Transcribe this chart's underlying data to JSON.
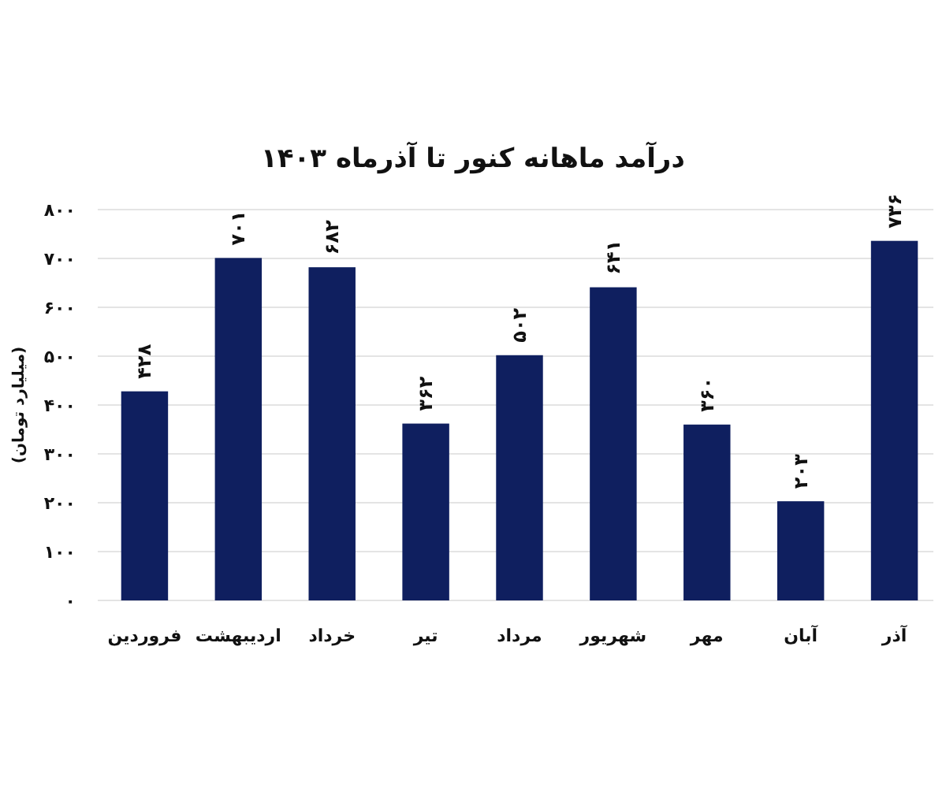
{
  "chart_data": {
    "type": "bar",
    "title": "درآمد ماهانه کنور تا آذرماه ۱۴۰۳",
    "ylabel": "(میلیارد تومان)",
    "categories": [
      "فروردین",
      "اردیبهشت",
      "خرداد",
      "تیر",
      "مرداد",
      "شهریور",
      "مهر",
      "آبان",
      "آذر"
    ],
    "values": [
      428,
      701,
      682,
      362,
      502,
      641,
      360,
      203,
      736
    ],
    "color": "#0f1f5f",
    "value_labels": [
      "۴۲۸",
      "۷۰۱",
      "۶۸۲",
      "۳۶۲",
      "۵۰۲",
      "۶۴۱",
      "۳۶۰",
      "۲۰۳",
      "۷۳۶"
    ],
    "ylim": [
      0,
      800
    ],
    "yticks": [
      {
        "value": 0,
        "label": "۰"
      },
      {
        "value": 100,
        "label": "۱۰۰"
      },
      {
        "value": 200,
        "label": "۲۰۰"
      },
      {
        "value": 300,
        "label": "۳۰۰"
      },
      {
        "value": 400,
        "label": "۴۰۰"
      },
      {
        "value": 500,
        "label": "۵۰۰"
      },
      {
        "value": 600,
        "label": "۶۰۰"
      },
      {
        "value": 700,
        "label": "۷۰۰"
      },
      {
        "value": 800,
        "label": "۸۰۰"
      }
    ],
    "grid": "y"
  }
}
